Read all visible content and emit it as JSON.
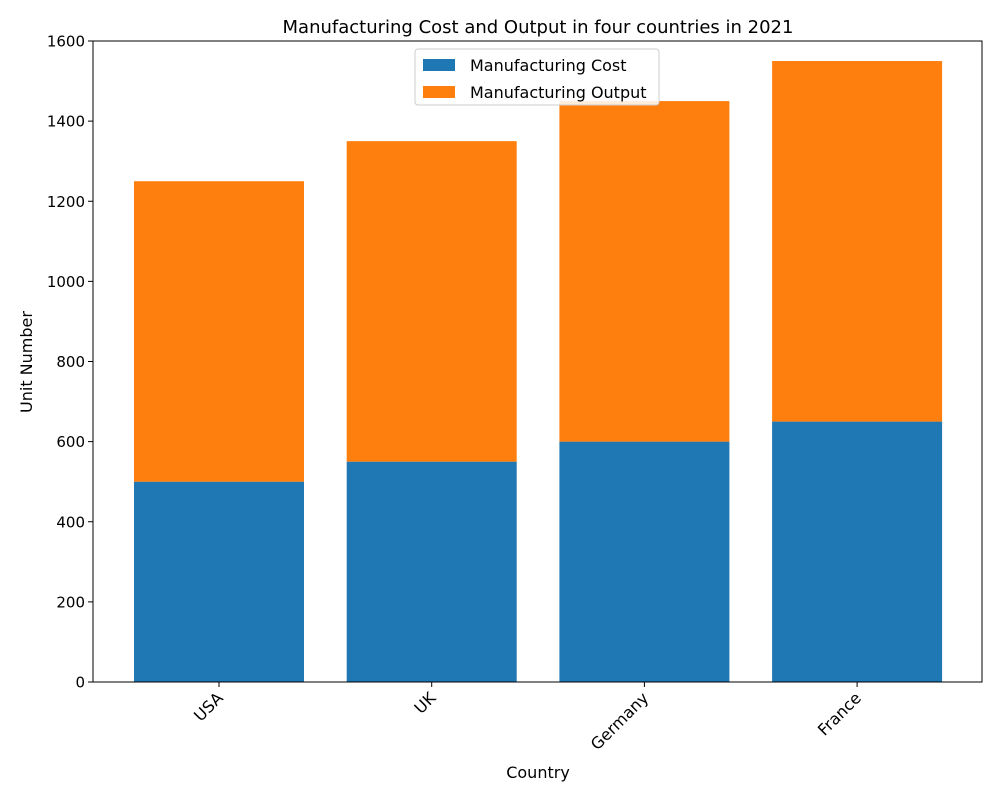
{
  "chart_data": {
    "type": "bar",
    "stacked": true,
    "title": "Manufacturing Cost and Output in four countries in 2021",
    "xlabel": "Country",
    "ylabel": "Unit Number",
    "categories": [
      "USA",
      "UK",
      "Germany",
      "France"
    ],
    "series": [
      {
        "name": "Manufacturing Cost",
        "values": [
          500,
          550,
          600,
          650
        ],
        "color": "#1f77b4"
      },
      {
        "name": "Manufacturing Output",
        "values": [
          750,
          800,
          850,
          900
        ],
        "color": "#ff7f0e"
      }
    ],
    "ylim": [
      0,
      1600
    ],
    "yticks": [
      0,
      200,
      400,
      600,
      800,
      1000,
      1200,
      1400,
      1600
    ],
    "grid": false,
    "legend_position": "top-center",
    "xtick_rotation": 45
  }
}
